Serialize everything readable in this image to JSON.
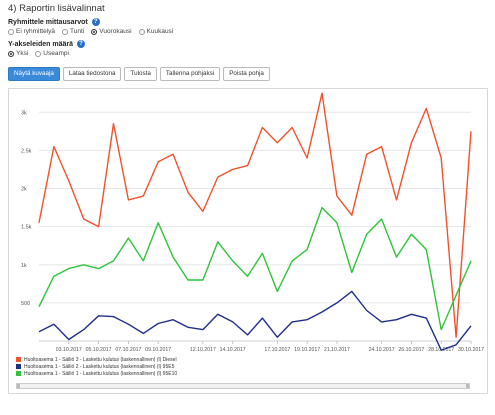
{
  "section_title": "4) Raportin lisävalinnat",
  "grouping": {
    "label": "Ryhmittele mittausarvot",
    "options": [
      "Ei ryhmittelyä",
      "Tunti",
      "Vuorokausi",
      "Kuukausi"
    ],
    "selected": "Vuorokausi"
  },
  "y_axes": {
    "label": "Y-akseleiden määrä",
    "options": [
      "Yksi",
      "Useampi"
    ],
    "selected": "Yksi"
  },
  "help_glyph": "?",
  "buttons": {
    "show_curve": "Näytä kuvaaja",
    "download_file": "Lataa tiedostona",
    "print": "Tulosta",
    "save_template": "Tallenna pohjaksi",
    "delete_template": "Poista pohja"
  },
  "colors": {
    "series_red": "#f0522b",
    "series_navy": "#1f2f8a",
    "series_green": "#2fc43a",
    "primary_button": "#3b8ad9",
    "help_icon": "#2a6fc4"
  },
  "chart_data": {
    "type": "line",
    "title": "",
    "xlabel": "",
    "ylabel": "",
    "ylim": [
      0,
      3200
    ],
    "yticks": [
      500,
      1000,
      1500,
      2000,
      2500,
      3000
    ],
    "ytick_labels": [
      "500",
      "1k",
      "1.5k",
      "2k",
      "2.5k",
      "3k"
    ],
    "x": [
      "01.10.2017",
      "02.10.2017",
      "03.10.2017",
      "04.10.2017",
      "05.10.2017",
      "06.10.2017",
      "07.10.2017",
      "08.10.2017",
      "09.10.2017",
      "10.10.2017",
      "11.10.2017",
      "12.10.2017",
      "13.10.2017",
      "14.10.2017",
      "15.10.2017",
      "16.10.2017",
      "17.10.2017",
      "18.10.2017",
      "19.10.2017",
      "20.10.2017",
      "21.10.2017",
      "22.10.2017",
      "23.10.2017",
      "24.10.2017",
      "25.10.2017",
      "26.10.2017",
      "27.10.2017",
      "28.10.2017",
      "29.10.2017",
      "30.10.2017"
    ],
    "xtick_labels": [
      "03.10.2017",
      "05.10.2017",
      "07.10.2017",
      "09.10.2017",
      "12.10.2017",
      "14.10.2017",
      "17.10.2017",
      "19.10.2017",
      "21.10.2017",
      "24.10.2017",
      "26.10.2017",
      "28.10.2017",
      "30.10.2017"
    ],
    "grid": true,
    "legend": "bottom-left",
    "series": [
      {
        "name": "Huoltoasema 1 - Säiliö 3 - Laskettu kulutus (laskennallinen) (l) Diesel",
        "color": "#f0522b",
        "values": [
          1550,
          2550,
          2100,
          1600,
          1500,
          2850,
          1850,
          1900,
          2350,
          2450,
          1950,
          1700,
          2150,
          2250,
          2300,
          2800,
          2600,
          2800,
          2400,
          3250,
          1900,
          1650,
          2450,
          2550,
          1850,
          2600,
          3050,
          2400,
          50,
          2750
        ]
      },
      {
        "name": "Huoltoasema 1 - Säiliö 2 - Laskettu kulutus (laskennallinen) (l) 95E5",
        "color": "#1f2f8a",
        "values": [
          120,
          220,
          20,
          150,
          330,
          320,
          220,
          100,
          230,
          280,
          180,
          150,
          350,
          250,
          80,
          300,
          50,
          250,
          280,
          380,
          500,
          650,
          400,
          250,
          280,
          350,
          300,
          -120,
          -50,
          200
        ]
      },
      {
        "name": "Huoltoasema 1 - Säiliö 1 - Laskettu kulutus (laskennallinen) (l) 95E10",
        "color": "#2fc43a",
        "values": [
          450,
          850,
          950,
          1000,
          950,
          1050,
          1350,
          1050,
          1550,
          1100,
          800,
          800,
          1300,
          1050,
          850,
          1150,
          650,
          1050,
          1200,
          1750,
          1550,
          900,
          1400,
          1600,
          1100,
          1400,
          1200,
          150,
          600,
          1050
        ]
      }
    ]
  }
}
